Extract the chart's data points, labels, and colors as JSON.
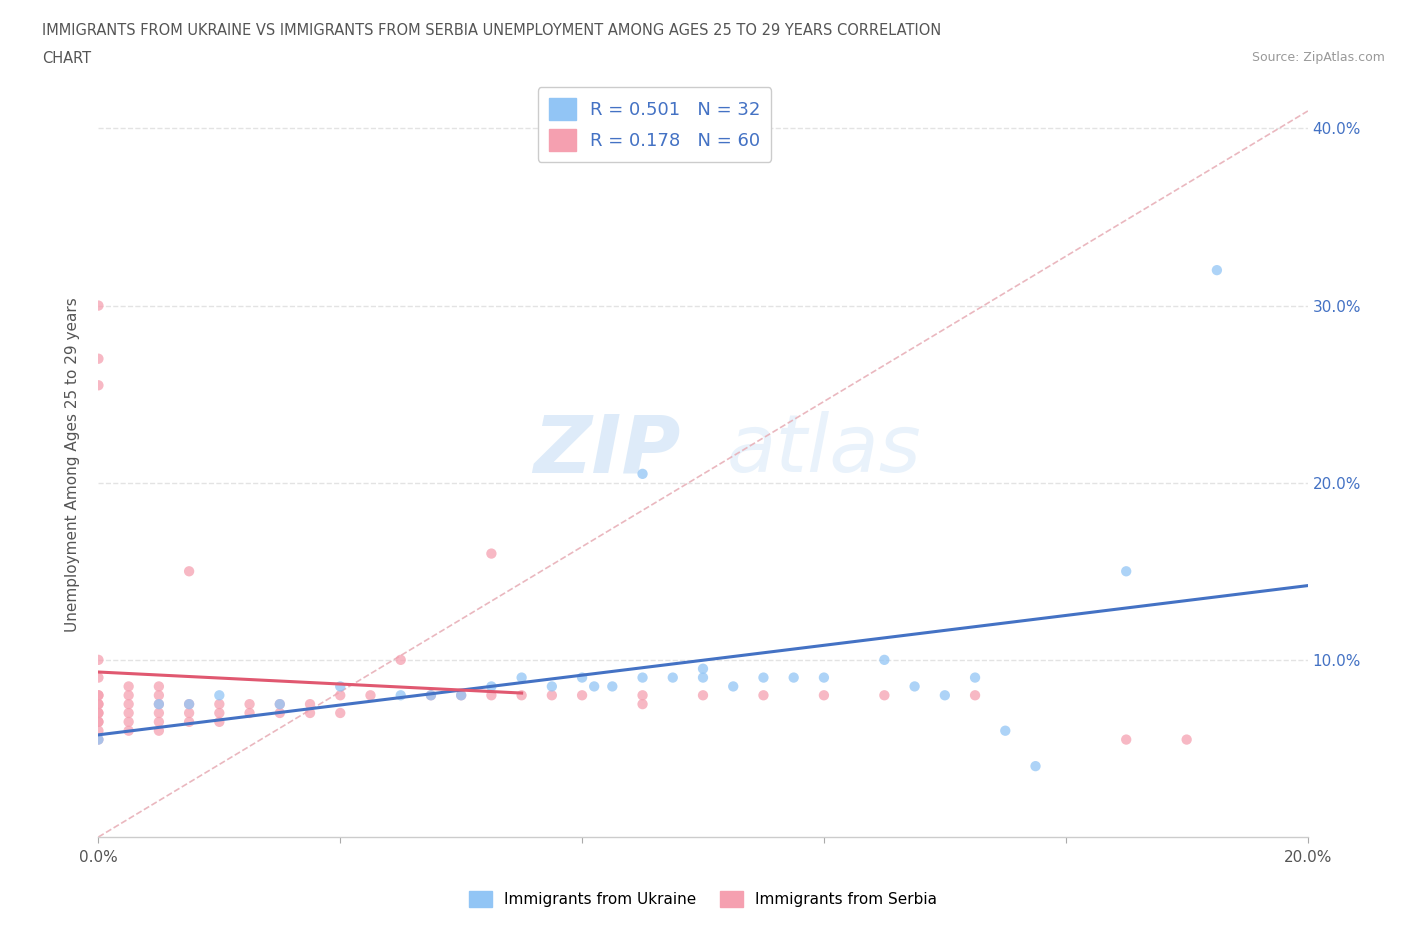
{
  "title_line1": "IMMIGRANTS FROM UKRAINE VS IMMIGRANTS FROM SERBIA UNEMPLOYMENT AMONG AGES 25 TO 29 YEARS CORRELATION",
  "title_line2": "CHART",
  "source": "Source: ZipAtlas.com",
  "ylabel": "Unemployment Among Ages 25 to 29 years",
  "xlim": [
    0.0,
    0.2
  ],
  "ylim": [
    0.0,
    0.42
  ],
  "ukraine_R": 0.501,
  "ukraine_N": 32,
  "serbia_R": 0.178,
  "serbia_N": 60,
  "ukraine_color": "#92C5F5",
  "serbia_color": "#F5A0B0",
  "ukraine_line_color": "#4472C4",
  "serbia_line_color": "#E05870",
  "diagonal_color": "#E8B0B8",
  "watermark_zip": "ZIP",
  "watermark_atlas": "atlas",
  "ukraine_scatter_x": [
    0.0,
    0.01,
    0.015,
    0.02,
    0.03,
    0.04,
    0.05,
    0.055,
    0.06,
    0.065,
    0.07,
    0.075,
    0.08,
    0.082,
    0.085,
    0.09,
    0.09,
    0.095,
    0.1,
    0.1,
    0.105,
    0.11,
    0.115,
    0.12,
    0.13,
    0.135,
    0.14,
    0.145,
    0.15,
    0.155,
    0.17,
    0.185
  ],
  "ukraine_scatter_y": [
    0.055,
    0.075,
    0.075,
    0.08,
    0.075,
    0.085,
    0.08,
    0.08,
    0.08,
    0.085,
    0.09,
    0.085,
    0.09,
    0.085,
    0.085,
    0.09,
    0.205,
    0.09,
    0.09,
    0.095,
    0.085,
    0.09,
    0.09,
    0.09,
    0.1,
    0.085,
    0.08,
    0.09,
    0.06,
    0.04,
    0.15,
    0.32
  ],
  "serbia_scatter_x": [
    0.0,
    0.0,
    0.0,
    0.0,
    0.0,
    0.0,
    0.0,
    0.0,
    0.0,
    0.0,
    0.0,
    0.0,
    0.0,
    0.0,
    0.0,
    0.005,
    0.005,
    0.005,
    0.005,
    0.005,
    0.005,
    0.01,
    0.01,
    0.01,
    0.01,
    0.01,
    0.01,
    0.015,
    0.015,
    0.015,
    0.015,
    0.02,
    0.02,
    0.02,
    0.025,
    0.025,
    0.03,
    0.03,
    0.035,
    0.035,
    0.04,
    0.04,
    0.045,
    0.05,
    0.055,
    0.06,
    0.065,
    0.065,
    0.07,
    0.075,
    0.08,
    0.09,
    0.09,
    0.1,
    0.11,
    0.12,
    0.13,
    0.145,
    0.17,
    0.18
  ],
  "serbia_scatter_y": [
    0.055,
    0.06,
    0.065,
    0.07,
    0.075,
    0.08,
    0.09,
    0.1,
    0.255,
    0.3,
    0.27,
    0.065,
    0.07,
    0.075,
    0.08,
    0.06,
    0.065,
    0.07,
    0.075,
    0.08,
    0.085,
    0.06,
    0.065,
    0.07,
    0.075,
    0.08,
    0.085,
    0.065,
    0.07,
    0.075,
    0.15,
    0.065,
    0.07,
    0.075,
    0.07,
    0.075,
    0.07,
    0.075,
    0.07,
    0.075,
    0.07,
    0.08,
    0.08,
    0.1,
    0.08,
    0.08,
    0.16,
    0.08,
    0.08,
    0.08,
    0.08,
    0.075,
    0.08,
    0.08,
    0.08,
    0.08,
    0.08,
    0.08,
    0.055,
    0.055
  ],
  "background_color": "#FFFFFF",
  "grid_color": "#D8D8D8"
}
